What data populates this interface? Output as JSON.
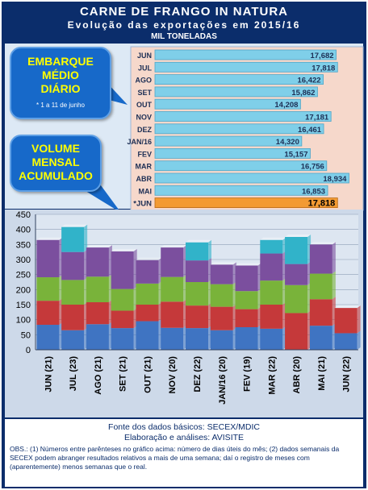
{
  "header": {
    "title": "CARNE DE FRANGO IN NATURA",
    "subtitle": "Evolução das exportações em 2015/16",
    "unit": "MIL TONELADAS"
  },
  "callouts": {
    "daily_line1": "EMBARQUE",
    "daily_line2": "MÉDIO",
    "daily_line3": "DIÁRIO",
    "daily_note": "* 1 a 11 de junho",
    "monthly_line1": "VOLUME",
    "monthly_line2": "MENSAL",
    "monthly_line3": "ACUMULADO"
  },
  "footer": {
    "source": "Fonte dos dados básicos: SECEX/MDIC",
    "analysis": "Elaboração e análises: AVISITE",
    "obs": "OBS.: (1) Números entre parênteses no gráfico acima: número de dias úteis do mês; (2) dados semanais da SECEX podem abranger resultados relativos a mais de uma semana; daí o registro de meses com (aparentemente) menos semanas que o real."
  },
  "colors": {
    "frame": "#0b2d6b",
    "hbar": "#7fcfe9",
    "hbar_highlight": "#f39a32",
    "week1": "#3f74c2",
    "week2": "#c5393a",
    "week3": "#79b33a",
    "week4": "#7b4f9e",
    "week5": "#31b3c9"
  },
  "chart_data": [
    {
      "type": "bar",
      "orientation": "horizontal",
      "categories": [
        "JUN",
        "JUL",
        "AGO",
        "SET",
        "OUT",
        "NOV",
        "DEZ",
        "JAN/16",
        "FEV",
        "MAR",
        "ABR",
        "MAI",
        "*JUN"
      ],
      "values": [
        17.682,
        17.818,
        16.422,
        15.862,
        14.208,
        17.181,
        16.461,
        14.32,
        15.157,
        16.756,
        18.934,
        16.853,
        17.818
      ],
      "value_labels": [
        "17,682",
        "17,818",
        "16,422",
        "15,862",
        "14,208",
        "17,181",
        "16,461",
        "14,320",
        "15,157",
        "16,756",
        "18,934",
        "16,853",
        "17,818"
      ],
      "highlight_index": 12,
      "xlim": [
        0,
        20
      ]
    },
    {
      "type": "bar",
      "stacked": true,
      "categories": [
        "JUN (21)",
        "JUL (23)",
        "AGO (21)",
        "SET (21)",
        "OUT (21)",
        "NOV (20)",
        "DEZ (22)",
        "JAN/16 (20)",
        "FEV (19)",
        "MAR (22)",
        "ABR (20)",
        "MAI (21)",
        "JUN (22)"
      ],
      "series": [
        {
          "values": [
            83,
            65,
            85,
            72,
            95,
            73,
            72,
            65,
            75,
            70,
            0,
            80,
            55
          ]
        },
        {
          "values": [
            80,
            85,
            73,
            58,
            55,
            87,
            75,
            78,
            60,
            80,
            122,
            88,
            84
          ]
        },
        {
          "values": [
            78,
            82,
            85,
            72,
            70,
            82,
            78,
            75,
            60,
            80,
            93,
            85,
            0
          ]
        },
        {
          "values": [
            124,
            93,
            97,
            125,
            78,
            98,
            72,
            65,
            85,
            90,
            70,
            97,
            0
          ]
        },
        {
          "values": [
            0,
            83,
            0,
            0,
            0,
            0,
            60,
            0,
            0,
            45,
            90,
            0,
            0
          ]
        }
      ],
      "yticks": [
        "0",
        "50",
        "100",
        "150",
        "200",
        "250",
        "300",
        "350",
        "400",
        "450"
      ],
      "ylim": [
        0,
        450
      ]
    }
  ]
}
